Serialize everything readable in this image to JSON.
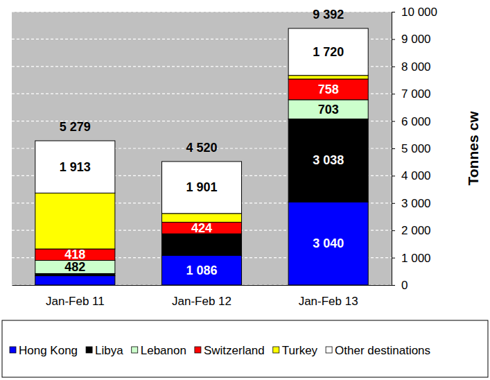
{
  "chart_data": {
    "type": "bar",
    "stacked": true,
    "data_labels": true,
    "grid": true,
    "legend": "bottom",
    "categories": [
      "Jan-Feb 11",
      "Jan-Feb 12",
      "Jan-Feb 13"
    ],
    "series": [
      {
        "name": "Hong Kong",
        "color": "#0000ff",
        "values": [
          340,
          1086,
          3040
        ],
        "value_labels": [
          null,
          "1 086",
          "3 040"
        ]
      },
      {
        "name": "Libya",
        "color": "#000000",
        "values": [
          80,
          789,
          3038
        ],
        "value_labels": [
          null,
          null,
          "3 038"
        ]
      },
      {
        "name": "Lebanon",
        "color": "#ccffcc",
        "values": [
          482,
          0,
          703
        ],
        "value_labels": [
          "482",
          null,
          "703"
        ]
      },
      {
        "name": "Switzerland",
        "color": "#ff0000",
        "values": [
          418,
          424,
          758
        ],
        "value_labels": [
          "418",
          "424",
          "758"
        ]
      },
      {
        "name": "Turkey",
        "color": "#ffff00",
        "values": [
          2046,
          320,
          133
        ],
        "value_labels": [
          null,
          null,
          null
        ]
      },
      {
        "name": "Other destinations",
        "color": "#ffffff",
        "values": [
          1913,
          1901,
          1720
        ],
        "value_labels": [
          "1 913",
          "1 901",
          "1 720"
        ]
      }
    ],
    "totals": [
      5279,
      4520,
      9392
    ],
    "total_labels": [
      "5 279",
      "4 520",
      "9 392"
    ],
    "y_label": "Tonnes cw",
    "ylim": [
      0,
      10000
    ],
    "yticks": [
      0,
      {
        "value": 1000,
        "label": "1 000"
      },
      {
        "value": 2000,
        "label": "2 000"
      },
      {
        "value": 3000,
        "label": "3 000"
      },
      {
        "value": 4000,
        "label": "4 000"
      },
      {
        "value": 5000,
        "label": "5 000"
      },
      {
        "value": 6000,
        "label": "6 000"
      },
      {
        "value": 7000,
        "label": "7 000"
      },
      {
        "value": 8000,
        "label": "8 000"
      },
      {
        "value": 9000,
        "label": "9 000"
      },
      {
        "value": 10000,
        "label": "10 000"
      }
    ]
  }
}
